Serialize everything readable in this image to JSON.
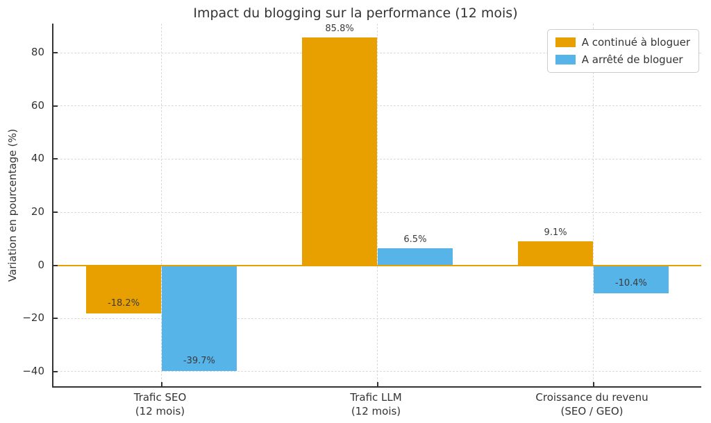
{
  "chart_data": {
    "type": "bar",
    "title": "Impact du blogging sur la performance (12 mois)",
    "ylabel": "Variation en pourcentage (%)",
    "xlabel": "",
    "categories": [
      [
        "Trafic SEO",
        "(12 mois)"
      ],
      [
        "Trafic LLM",
        "(12 mois)"
      ],
      [
        "Croissance du revenu",
        "(SEO / GEO)"
      ]
    ],
    "series": [
      {
        "name": "A continué à bloguer",
        "color": "#E8A000",
        "values": [
          -18.2,
          85.8,
          9.1
        ],
        "labels": [
          "-18.2%",
          "85.8%",
          "9.1%"
        ]
      },
      {
        "name": "A arrêté de bloguer",
        "color": "#56B4E9",
        "values": [
          -39.7,
          6.5,
          -10.4
        ],
        "labels": [
          "-39.7%",
          "6.5%",
          "-10.4%"
        ]
      }
    ],
    "ylim": [
      -45.5,
      91
    ],
    "xlim": [
      -0.5,
      2.5
    ],
    "yticks": [
      {
        "value": 80,
        "label": "80"
      },
      {
        "value": 60,
        "label": "60"
      },
      {
        "value": 40,
        "label": "40"
      },
      {
        "value": 20,
        "label": "20"
      },
      {
        "value": 0,
        "label": "0"
      },
      {
        "value": -20,
        "label": "−20"
      },
      {
        "value": -40,
        "label": "−40"
      }
    ],
    "bar_width": 0.35,
    "grid": "dashed",
    "grid_color": "#d9d9d9",
    "zero_line_color": "#E8A000",
    "axis_color": "#333333",
    "legend_position": "top-right"
  }
}
